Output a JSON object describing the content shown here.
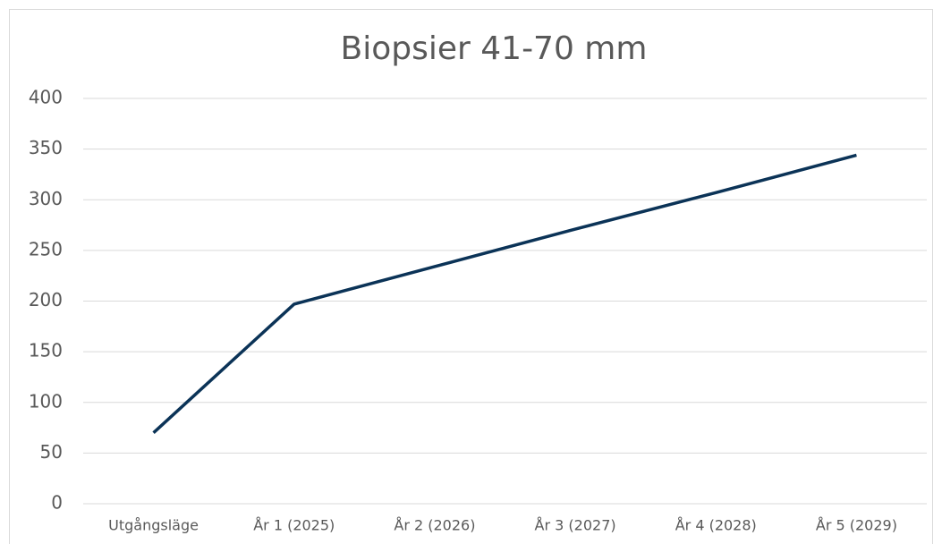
{
  "chart_data": {
    "type": "line",
    "title": "Biopsier 41-70 mm",
    "categories": [
      "Utgångsläge",
      "År 1 (2025)",
      "År 2 (2026)",
      "År 3 (2027)",
      "År 4 (2028)",
      "År 5 (2029)"
    ],
    "series": [
      {
        "name": "Biopsier 41-70 mm",
        "color": "#0b3357",
        "values": [
          70,
          197,
          234,
          271,
          307,
          344
        ]
      }
    ],
    "ylim": [
      0,
      400
    ],
    "yticks": [
      0,
      50,
      100,
      150,
      200,
      250,
      300,
      350,
      400
    ],
    "grid": true
  }
}
